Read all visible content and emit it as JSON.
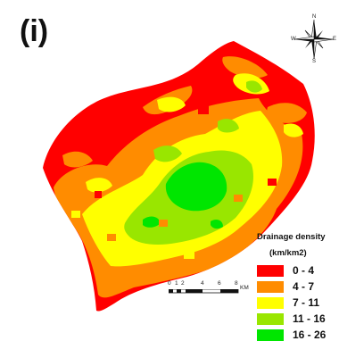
{
  "panel": {
    "label": "(i)"
  },
  "compass": {
    "north": "N",
    "south": "S",
    "east": "E",
    "west": "W"
  },
  "legend": {
    "title": "Drainage density",
    "unit": "(km/km2)",
    "classes": [
      {
        "label": "0 - 4",
        "color": "#ff0000"
      },
      {
        "label": "4 - 7",
        "color": "#ff8c00"
      },
      {
        "label": "7 - 11",
        "color": "#ffff00"
      },
      {
        "label": "11 - 16",
        "color": "#99e600"
      },
      {
        "label": "16 - 26",
        "color": "#00e600"
      }
    ]
  },
  "scalebar": {
    "ticks": [
      "0",
      "1",
      "2",
      "4",
      "6",
      "8"
    ],
    "unit": "KM"
  }
}
